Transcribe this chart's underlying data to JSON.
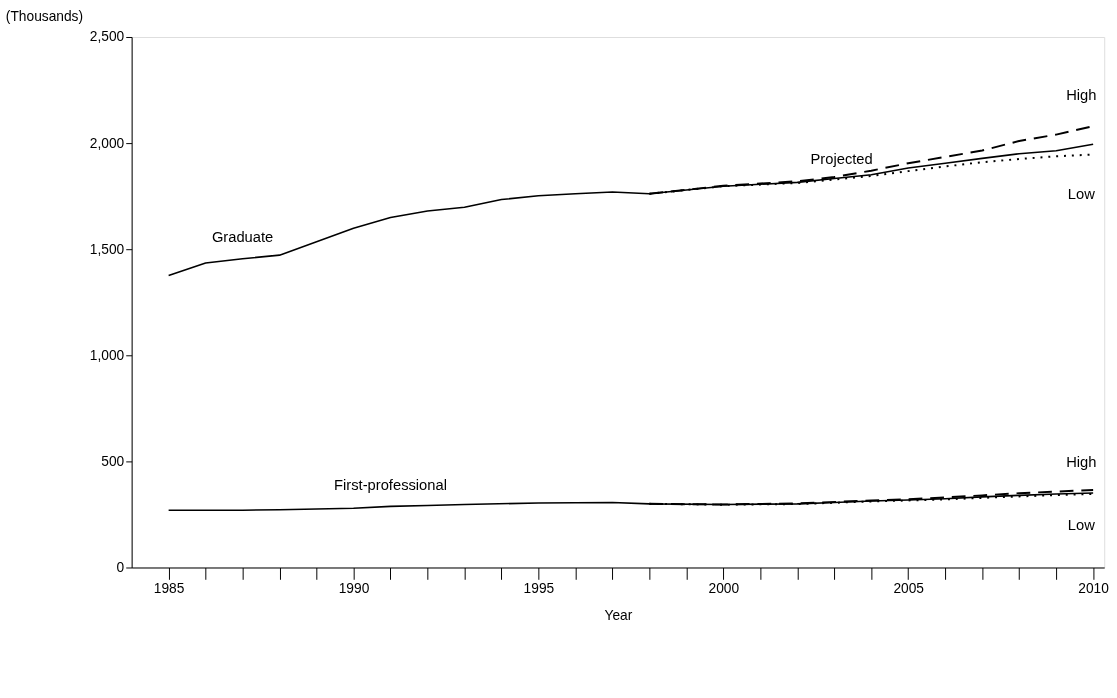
{
  "chart_data": {
    "type": "line",
    "xlabel": "Year",
    "ylabel": "(Thousands)",
    "xlim": [
      1984,
      2010.3
    ],
    "ylim": [
      0,
      2500
    ],
    "xticks": [
      1985,
      {
        "value": 1986,
        "label": null
      },
      {
        "value": 1987,
        "label": null
      },
      {
        "value": 1988,
        "label": null
      },
      {
        "value": 1989,
        "label": null
      },
      1990,
      {
        "value": 1991,
        "label": null
      },
      {
        "value": 1992,
        "label": null
      },
      {
        "value": 1993,
        "label": null
      },
      {
        "value": 1994,
        "label": null
      },
      1995,
      {
        "value": 1996,
        "label": null
      },
      {
        "value": 1997,
        "label": null
      },
      {
        "value": 1998,
        "label": null
      },
      {
        "value": 1999,
        "label": null
      },
      2000,
      {
        "value": 2001,
        "label": null
      },
      {
        "value": 2002,
        "label": null
      },
      {
        "value": 2003,
        "label": null
      },
      {
        "value": 2004,
        "label": null
      },
      2005,
      {
        "value": 2006,
        "label": null
      },
      {
        "value": 2007,
        "label": null
      },
      {
        "value": 2008,
        "label": null
      },
      {
        "value": 2009,
        "label": null
      },
      2010
    ],
    "yticks": [
      0,
      {
        "value": 500,
        "label": "500"
      },
      {
        "value": 1000,
        "label": "1,000"
      },
      {
        "value": 1500,
        "label": "1,500"
      },
      {
        "value": 2000,
        "label": "2,000"
      },
      {
        "value": 2500,
        "label": "2,500"
      }
    ],
    "grid": false,
    "marker": "none",
    "series": [
      {
        "name": "Graduate",
        "color": "#000000",
        "line_style": "solid",
        "x": [
          1985,
          1986,
          1987,
          1988,
          1989,
          1990,
          1991,
          1992,
          1993,
          1994,
          1995,
          1996,
          1997,
          1998,
          1999,
          2000,
          2001,
          2002,
          2003,
          2004,
          2005,
          2006,
          2007,
          2008,
          2009,
          2010
        ],
        "values": [
          1376,
          1435,
          1455,
          1472,
          1535,
          1599,
          1649,
          1680,
          1698,
          1734,
          1752,
          1761,
          1770,
          1761,
          1779,
          1797,
          1806,
          1815,
          1833,
          1851,
          1883,
          1905,
          1928,
          1950,
          1964,
          1995
        ]
      },
      {
        "name": "High",
        "color": "#000000",
        "line_style": "dashed",
        "x": [
          1998,
          2000,
          2002,
          2003,
          2004,
          2005,
          2006,
          2007,
          2008,
          2009,
          2010
        ],
        "values": [
          1761,
          1799,
          1820,
          1840,
          1870,
          1905,
          1935,
          1965,
          2010,
          2040,
          2080
        ]
      },
      {
        "name": "Low",
        "color": "#000000",
        "line_style": "dotted",
        "x": [
          1998,
          2000,
          2002,
          2003,
          2004,
          2005,
          2006,
          2007,
          2008,
          2009,
          2010
        ],
        "values": [
          1761,
          1797,
          1812,
          1828,
          1845,
          1868,
          1890,
          1910,
          1925,
          1938,
          1946
        ]
      },
      {
        "name": "First-professional",
        "color": "#000000",
        "line_style": "solid",
        "x": [
          1985,
          1987,
          1988,
          1990,
          1991,
          1992,
          1993,
          1995,
          1997,
          1998,
          2000,
          2002,
          2003,
          2004,
          2005,
          2006,
          2007,
          2008,
          2009,
          2010
        ],
        "values": [
          270,
          270,
          272,
          279,
          288,
          292,
          297,
          304,
          306,
          300,
          297,
          300,
          306,
          313,
          318,
          324,
          333,
          340,
          346,
          351
        ]
      },
      {
        "name": "High",
        "color": "#000000",
        "line_style": "dashed",
        "x": [
          1998,
          2000,
          2002,
          2004,
          2005,
          2006,
          2007,
          2008,
          2009,
          2010
        ],
        "values": [
          300,
          297,
          302,
          316,
          322,
          330,
          340,
          350,
          358,
          365
        ]
      },
      {
        "name": "Low",
        "color": "#000000",
        "line_style": "dotted",
        "x": [
          1998,
          2000,
          2002,
          2004,
          2005,
          2006,
          2007,
          2008,
          2009,
          2010
        ],
        "values": [
          300,
          296,
          299,
          311,
          316,
          321,
          328,
          335,
          341,
          347
        ]
      }
    ],
    "annotations": [
      "Projected"
    ]
  }
}
